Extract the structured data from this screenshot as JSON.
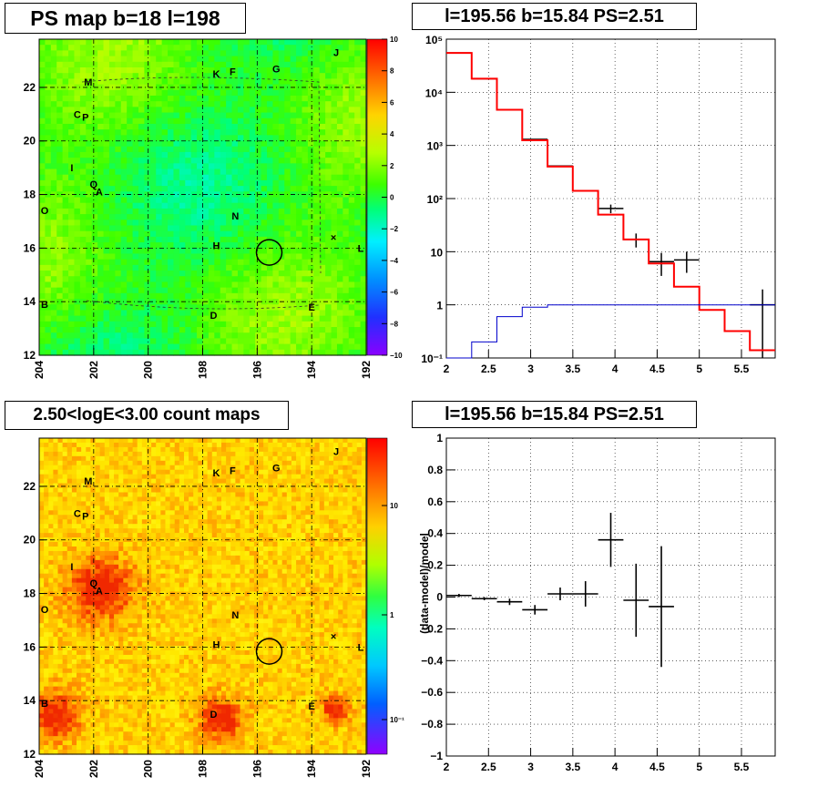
{
  "panels": {
    "tl": {
      "title": "PS map b=18 l=198"
    },
    "tr": {
      "title": "l=195.56 b=15.84 PS=2.51"
    },
    "bl": {
      "title": "2.50<logE<3.00 count maps"
    },
    "br": {
      "title": "l=195.56 b=15.84 PS=2.51"
    }
  },
  "sources": [
    {
      "label": "M",
      "l": 202.2,
      "b": 22.2
    },
    {
      "label": "C",
      "l": 202.6,
      "b": 21.0
    },
    {
      "label": "P",
      "l": 202.3,
      "b": 20.9
    },
    {
      "label": "I",
      "l": 202.8,
      "b": 19.0
    },
    {
      "label": "Q",
      "l": 202.0,
      "b": 18.4
    },
    {
      "label": "A",
      "l": 201.8,
      "b": 18.1
    },
    {
      "label": "O",
      "l": 203.8,
      "b": 17.4
    },
    {
      "label": "B",
      "l": 203.8,
      "b": 13.9
    },
    {
      "label": "K",
      "l": 197.5,
      "b": 22.5
    },
    {
      "label": "F",
      "l": 196.9,
      "b": 22.6
    },
    {
      "label": "G",
      "l": 195.3,
      "b": 22.7
    },
    {
      "label": "J",
      "l": 193.1,
      "b": 23.3
    },
    {
      "label": "N",
      "l": 196.8,
      "b": 17.2
    },
    {
      "label": "H",
      "l": 197.5,
      "b": 16.1
    },
    {
      "label": "D",
      "l": 197.6,
      "b": 13.5
    },
    {
      "label": "E",
      "l": 194.0,
      "b": 13.8
    },
    {
      "label": "L",
      "l": 192.2,
      "b": 16.0
    }
  ],
  "marker": {
    "l": 195.56,
    "b": 15.84
  },
  "chart_data": [
    {
      "type": "heatmap",
      "title": "PS map b=18 l=198",
      "x_ticks": [
        "204",
        "202",
        "200",
        "198",
        "196",
        "194",
        "192"
      ],
      "y_ticks": [
        "12",
        "14",
        "16",
        "18",
        "20",
        "22"
      ],
      "xlim": [
        204,
        192
      ],
      "ylim": [
        12,
        23.8
      ],
      "colorbar": {
        "range": [
          -10,
          10
        ],
        "ticks": [
          "10",
          "8",
          "6",
          "4",
          "2",
          "0",
          "−2",
          "−4",
          "−6",
          "−8",
          "−10"
        ]
      },
      "dominant_value": 1
    },
    {
      "type": "line",
      "title": "l=195.56 b=15.84 PS=2.51",
      "x_ticks": [
        "2",
        "2.5",
        "3",
        "3.5",
        "4",
        "4.5",
        "5",
        "5.5"
      ],
      "y_ticks": [
        "10⁻¹",
        "1",
        "10",
        "10²",
        "10³",
        "10⁴",
        "10⁵"
      ],
      "xlim": [
        2,
        5.9
      ],
      "ylim": [
        0.1,
        100000
      ],
      "yscale": "log",
      "series": [
        {
          "color": "#000000",
          "kind": "data",
          "edges": [
            2.0,
            2.3,
            2.6,
            2.9,
            3.2,
            3.5,
            3.8,
            4.1,
            4.4,
            4.7,
            5.0,
            5.3,
            5.6,
            5.9
          ],
          "values": [
            55000,
            18000,
            4700,
            1300,
            410,
            140,
            65,
            17,
            6.5,
            7,
            0,
            0,
            1.0,
            0
          ],
          "err": [
            0,
            0,
            0,
            0,
            0,
            0,
            12,
            5,
            3,
            3,
            0,
            0,
            0.95,
            0
          ]
        },
        {
          "color": "#ff0000",
          "kind": "model",
          "edges": [
            2.0,
            2.3,
            2.6,
            2.9,
            3.2,
            3.5,
            3.8,
            4.1,
            4.4,
            4.7,
            5.0,
            5.3,
            5.6,
            5.9
          ],
          "values": [
            55000,
            18000,
            4700,
            1250,
            400,
            140,
            50,
            17,
            6,
            2.2,
            0.8,
            0.32,
            0.14
          ]
        },
        {
          "color": "#0000cc",
          "kind": "component",
          "edges": [
            2.0,
            2.3,
            2.6,
            2.9,
            3.2,
            3.5,
            3.8,
            4.1,
            4.4,
            4.7,
            5.0,
            5.3,
            5.6,
            5.9
          ],
          "values": [
            0.1,
            0.2,
            0.6,
            0.9,
            1.0,
            1.0,
            1.0,
            1.0,
            1.0,
            1.0,
            1.0,
            1.0,
            1.0
          ]
        }
      ]
    },
    {
      "type": "heatmap",
      "title": "2.50<logE<3.00 count maps",
      "x_ticks": [
        "204",
        "202",
        "200",
        "198",
        "196",
        "194",
        "192"
      ],
      "y_ticks": [
        "12",
        "14",
        "16",
        "18",
        "20",
        "22"
      ],
      "xlim": [
        204,
        192
      ],
      "ylim": [
        12,
        23.8
      ],
      "colorbar": {
        "scale": "log",
        "ticks": [
          "10",
          "1",
          "10⁻¹"
        ]
      }
    },
    {
      "type": "scatter",
      "title": "l=195.56 b=15.84 PS=2.51",
      "ylabel": "(data-model)/model",
      "x_ticks": [
        "2",
        "2.5",
        "3",
        "3.5",
        "4",
        "4.5",
        "5",
        "5.5"
      ],
      "y_ticks": [
        "1",
        "0.8",
        "0.6",
        "0.4",
        "0.2",
        "0",
        "−0.2",
        "−0.4",
        "−0.6",
        "−0.8",
        "−1"
      ],
      "xlim": [
        2,
        5.9
      ],
      "ylim": [
        -1,
        1
      ],
      "points": [
        {
          "x": 2.15,
          "xerr": 0.15,
          "y": 0.01,
          "yerr": 0.01
        },
        {
          "x": 2.45,
          "xerr": 0.15,
          "y": -0.01,
          "yerr": 0.01
        },
        {
          "x": 2.75,
          "xerr": 0.15,
          "y": -0.03,
          "yerr": 0.02
        },
        {
          "x": 3.05,
          "xerr": 0.15,
          "y": -0.08,
          "yerr": 0.03
        },
        {
          "x": 3.35,
          "xerr": 0.15,
          "y": 0.02,
          "yerr": 0.04
        },
        {
          "x": 3.65,
          "xerr": 0.15,
          "y": 0.02,
          "yerr": 0.08
        },
        {
          "x": 3.95,
          "xerr": 0.15,
          "y": 0.36,
          "yerr": 0.17
        },
        {
          "x": 4.25,
          "xerr": 0.15,
          "y": -0.02,
          "yerr": 0.23
        },
        {
          "x": 4.55,
          "xerr": 0.15,
          "y": -0.06,
          "yerr": 0.38
        }
      ]
    }
  ]
}
